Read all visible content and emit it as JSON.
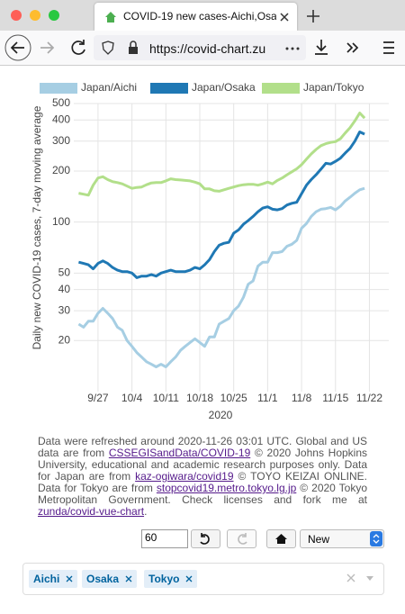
{
  "browser": {
    "tab_title": "COVID-19 new cases-Aichi,Osa",
    "url": "https://covid-chart.zu"
  },
  "chart_data": {
    "type": "line",
    "y_label": "Daily new COVID-19 cases, 7-day moving average",
    "x_label": "2020",
    "log_scale": true,
    "grid": true,
    "legend": "top",
    "x": [
      "2020-09-23",
      "2020-09-24",
      "2020-09-25",
      "2020-09-26",
      "2020-09-27",
      "2020-09-28",
      "2020-09-29",
      "2020-09-30",
      "2020-10-01",
      "2020-10-02",
      "2020-10-03",
      "2020-10-04",
      "2020-10-05",
      "2020-10-06",
      "2020-10-07",
      "2020-10-08",
      "2020-10-09",
      "2020-10-10",
      "2020-10-11",
      "2020-10-12",
      "2020-10-13",
      "2020-10-14",
      "2020-10-15",
      "2020-10-16",
      "2020-10-17",
      "2020-10-18",
      "2020-10-19",
      "2020-10-20",
      "2020-10-21",
      "2020-10-22",
      "2020-10-23",
      "2020-10-24",
      "2020-10-25",
      "2020-10-26",
      "2020-10-27",
      "2020-10-28",
      "2020-10-29",
      "2020-10-30",
      "2020-10-31",
      "2020-11-01",
      "2020-11-02",
      "2020-11-03",
      "2020-11-04",
      "2020-11-05",
      "2020-11-06",
      "2020-11-07",
      "2020-11-08",
      "2020-11-09",
      "2020-11-10",
      "2020-11-11",
      "2020-11-12",
      "2020-11-13",
      "2020-11-14",
      "2020-11-15",
      "2020-11-16",
      "2020-11-17",
      "2020-11-18",
      "2020-11-19",
      "2020-11-20",
      "2020-11-21"
    ],
    "series": [
      {
        "name": "Japan/Aichi",
        "color": "#a6cee3",
        "values": [
          25,
          24,
          26,
          26,
          29,
          31,
          29,
          27,
          24,
          23,
          20,
          18.5,
          17,
          16,
          15,
          14.5,
          14,
          14.5,
          14,
          15,
          16,
          17.5,
          18.5,
          19.5,
          20.5,
          19.5,
          18.5,
          21,
          21,
          25,
          26,
          27,
          30,
          32,
          36,
          43,
          45,
          55,
          58,
          58,
          66,
          66,
          67,
          72,
          74,
          78,
          92,
          98,
          108,
          115,
          119,
          120,
          122,
          118,
          124,
          133,
          140,
          148,
          155,
          158
        ]
      },
      {
        "name": "Japan/Osaka",
        "color": "#1f78b4",
        "values": [
          58,
          57,
          56,
          53,
          57,
          59,
          57,
          54,
          52,
          51,
          51,
          50,
          47,
          48,
          48,
          49,
          48,
          50,
          51,
          52,
          51,
          51,
          51,
          52,
          54,
          53,
          56,
          60,
          67,
          73,
          75,
          76,
          86,
          90,
          97,
          102,
          108,
          115,
          121,
          123,
          119,
          118,
          120,
          126,
          129,
          131,
          147,
          165,
          178,
          190,
          205,
          222,
          220,
          228,
          238,
          255,
          272,
          300,
          340,
          330
        ]
      },
      {
        "name": "Japan/Tokyo",
        "color": "#b2df8a",
        "values": [
          148,
          146,
          144,
          165,
          182,
          185,
          178,
          173,
          171,
          168,
          163,
          158,
          160,
          161,
          166,
          170,
          171,
          171,
          175,
          180,
          178,
          177,
          176,
          175,
          172,
          168,
          157,
          157,
          153,
          152,
          155,
          158,
          161,
          164,
          166,
          167,
          167,
          165,
          168,
          172,
          168,
          176,
          182,
          190,
          198,
          206,
          218,
          235,
          252,
          268,
          282,
          290,
          295,
          298,
          310,
          335,
          360,
          395,
          440,
          410
        ]
      }
    ],
    "xlim": [
      "2020-09-22",
      "2020-11-26"
    ],
    "xticks": [
      {
        "value": "2020-09-27",
        "label": "9/27"
      },
      {
        "value": "2020-10-04",
        "label": "10/4"
      },
      {
        "value": "2020-10-11",
        "label": "10/11"
      },
      {
        "value": "2020-10-18",
        "label": "10/18"
      },
      {
        "value": "2020-10-25",
        "label": "10/25"
      },
      {
        "value": "2020-11-01",
        "label": "11/1"
      },
      {
        "value": "2020-11-08",
        "label": "11/8"
      },
      {
        "value": "2020-11-15",
        "label": "11/15"
      },
      {
        "value": "2020-11-22",
        "label": "11/22"
      }
    ],
    "ylim": [
      10,
      500
    ],
    "yticks": [
      20,
      30,
      40,
      50,
      100,
      200,
      300,
      400,
      500
    ]
  },
  "notes": [
    "Data were refreshed around 2020-11-26 03:01 UTC. Global and US data are from ",
    "CSSEGISandData/COVID-19",
    " © 2020 Johns Hopkins University, educational and academic research purposes only. Data for Japan are from ",
    "kaz-ogiwara/covid19",
    " © TOYO KEIZAI ONLINE. Data for Tokyo are from ",
    "stopcovid19.metro.tokyo.lg.jp",
    " © 2020 Tokyo Metropolitan Government. Check licenses and fork me at ",
    "zunda/covid-vue-chart",
    "."
  ],
  "controls": {
    "days": "60",
    "sort": "New"
  },
  "filters": [
    "Aichi",
    "Osaka",
    "Tokyo"
  ]
}
